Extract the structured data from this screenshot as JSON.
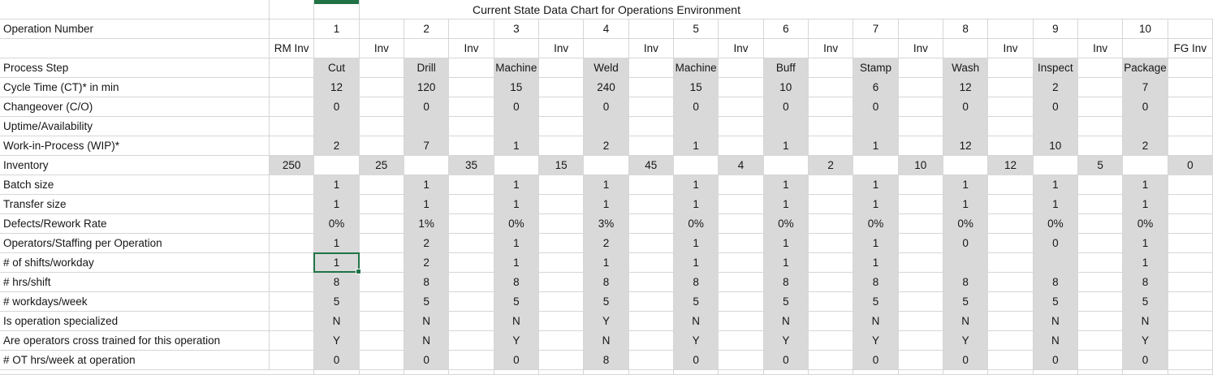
{
  "title": "Current State Data Chart for Operations Environment",
  "header": {
    "label": "Operation Number",
    "operations": [
      "1",
      "2",
      "3",
      "4",
      "5",
      "6",
      "7",
      "8",
      "9",
      "10"
    ],
    "inv_labels": [
      "RM Inv",
      "Inv",
      "Inv",
      "Inv",
      "Inv",
      "Inv",
      "Inv",
      "Inv",
      "Inv",
      "Inv",
      "FG Inv"
    ]
  },
  "rows": [
    {
      "label": "Process Step",
      "type": "ops",
      "values": [
        "Cut",
        "Drill",
        "Machine",
        "Weld",
        "Machine",
        "Buff",
        "Stamp",
        "Wash",
        "Inspect",
        "Package"
      ]
    },
    {
      "label": "Cycle Time (CT)* in min",
      "type": "ops",
      "values": [
        "12",
        "120",
        "15",
        "240",
        "15",
        "10",
        "6",
        "12",
        "2",
        "7"
      ]
    },
    {
      "label": "Changeover (C/O)",
      "type": "ops",
      "values": [
        "0",
        "0",
        "0",
        "0",
        "0",
        "0",
        "0",
        "0",
        "0",
        "0"
      ]
    },
    {
      "label": "Uptime/Availability",
      "type": "ops",
      "values": [
        "",
        "",
        "",
        "",
        "",
        "",
        "",
        "",
        "",
        ""
      ]
    },
    {
      "label": "Work-in-Process (WIP)*",
      "type": "ops",
      "values": [
        "2",
        "7",
        "1",
        "2",
        "1",
        "1",
        "1",
        "12",
        "10",
        "2"
      ]
    },
    {
      "label": "Inventory",
      "type": "inv",
      "values": [
        "250",
        "25",
        "35",
        "15",
        "45",
        "4",
        "2",
        "10",
        "12",
        "5",
        "0"
      ]
    },
    {
      "label": "Batch size",
      "type": "ops",
      "values": [
        "1",
        "1",
        "1",
        "1",
        "1",
        "1",
        "1",
        "1",
        "1",
        "1"
      ]
    },
    {
      "label": "Transfer size",
      "type": "ops",
      "values": [
        "1",
        "1",
        "1",
        "1",
        "1",
        "1",
        "1",
        "1",
        "1",
        "1"
      ]
    },
    {
      "label": "Defects/Rework Rate",
      "type": "ops",
      "values": [
        "0%",
        "1%",
        "0%",
        "3%",
        "0%",
        "0%",
        "0%",
        "0%",
        "0%",
        "0%"
      ]
    },
    {
      "label": "Operators/Staffing per Operation",
      "type": "ops",
      "values": [
        "1",
        "2",
        "1",
        "2",
        "1",
        "1",
        "1",
        "0",
        "0",
        "1"
      ]
    },
    {
      "label": "# of shifts/workday",
      "type": "ops",
      "values": [
        "1",
        "2",
        "1",
        "1",
        "1",
        "1",
        "1",
        "",
        "",
        "1"
      ]
    },
    {
      "label": "# hrs/shift",
      "type": "ops",
      "values": [
        "8",
        "8",
        "8",
        "8",
        "8",
        "8",
        "8",
        "8",
        "8",
        "8"
      ]
    },
    {
      "label": "# workdays/week",
      "type": "ops",
      "values": [
        "5",
        "5",
        "5",
        "5",
        "5",
        "5",
        "5",
        "5",
        "5",
        "5"
      ]
    },
    {
      "label": "Is operation specialized",
      "type": "ops",
      "values": [
        "N",
        "N",
        "N",
        "Y",
        "N",
        "N",
        "N",
        "N",
        "N",
        "N"
      ]
    },
    {
      "label": "Are operators cross trained for this operation",
      "type": "ops",
      "values": [
        "Y",
        "N",
        "Y",
        "N",
        "Y",
        "Y",
        "Y",
        "Y",
        "N",
        "Y"
      ]
    },
    {
      "label": "# OT hrs/week at operation",
      "type": "ops",
      "values": [
        "0",
        "0",
        "0",
        "8",
        "0",
        "0",
        "0",
        "0",
        "0",
        "0"
      ]
    }
  ],
  "selection": {
    "row_label": "# of shifts/workday",
    "row_index": 10,
    "op_index": 0,
    "value": "1"
  },
  "colors": {
    "cell_fill": "#d9d9d9",
    "gridline": "#d6d6d6",
    "selection_green": "#217346",
    "text": "#161616"
  }
}
